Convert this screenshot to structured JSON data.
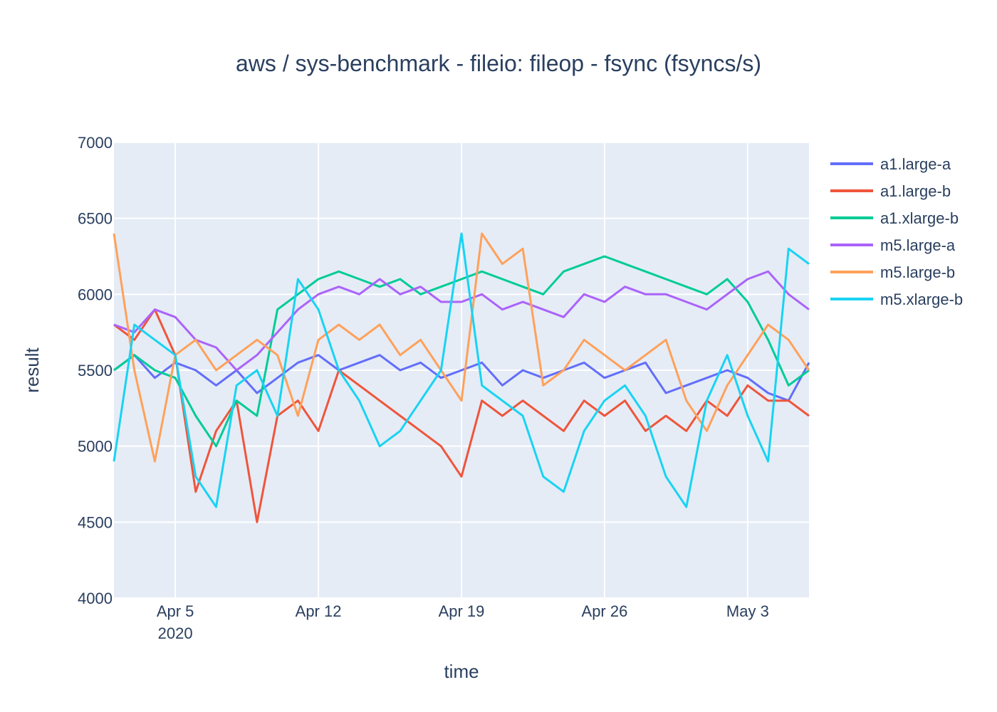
{
  "chart_data": {
    "type": "line",
    "title": "aws / sys-benchmark - fileio: fileop - fsync (fsyncs/s)",
    "xlabel": "time",
    "ylabel": "result",
    "x_range": [
      "2020-04-02",
      "2020-05-06"
    ],
    "ylim": [
      4000,
      7000
    ],
    "y_ticks": [
      4000,
      4500,
      5000,
      5500,
      6000,
      6500,
      7000
    ],
    "x_ticks": [
      {
        "date": "2020-04-05",
        "label": "Apr 5",
        "sublabel": "2020"
      },
      {
        "date": "2020-04-12",
        "label": "Apr 12",
        "sublabel": ""
      },
      {
        "date": "2020-04-19",
        "label": "Apr 19",
        "sublabel": ""
      },
      {
        "date": "2020-04-26",
        "label": "Apr 26",
        "sublabel": ""
      },
      {
        "date": "2020-05-03",
        "label": "May 3",
        "sublabel": ""
      }
    ],
    "grid": true,
    "legend_position": "right",
    "plot_bgcolor": "#e5ecf6",
    "series": [
      {
        "name": "a1.large-a",
        "color": "#636efa",
        "x": [
          "2020-04-02",
          "2020-04-03",
          "2020-04-04",
          "2020-04-05",
          "2020-04-06",
          "2020-04-07",
          "2020-04-08",
          "2020-04-09",
          "2020-04-10",
          "2020-04-11",
          "2020-04-12",
          "2020-04-13",
          "2020-04-14",
          "2020-04-15",
          "2020-04-16",
          "2020-04-17",
          "2020-04-18",
          "2020-04-19",
          "2020-04-20",
          "2020-04-21",
          "2020-04-22",
          "2020-04-23",
          "2020-04-24",
          "2020-04-25",
          "2020-04-26",
          "2020-04-27",
          "2020-04-28",
          "2020-04-29",
          "2020-04-30",
          "2020-05-01",
          "2020-05-02",
          "2020-05-03",
          "2020-05-04",
          "2020-05-05",
          "2020-05-06"
        ],
        "y": [
          5500,
          5600,
          5450,
          5550,
          5500,
          5400,
          5500,
          5350,
          5450,
          5550,
          5600,
          5500,
          5550,
          5600,
          5500,
          5550,
          5450,
          5500,
          5550,
          5400,
          5500,
          5450,
          5500,
          5550,
          5450,
          5500,
          5550,
          5350,
          5400,
          5450,
          5500,
          5450,
          5350,
          5300,
          5550
        ]
      },
      {
        "name": "a1.large-b",
        "color": "#ef553b",
        "x": [
          "2020-04-02",
          "2020-04-03",
          "2020-04-04",
          "2020-04-05",
          "2020-04-06",
          "2020-04-07",
          "2020-04-08",
          "2020-04-09",
          "2020-04-10",
          "2020-04-11",
          "2020-04-12",
          "2020-04-13",
          "2020-04-14",
          "2020-04-15",
          "2020-04-16",
          "2020-04-17",
          "2020-04-18",
          "2020-04-19",
          "2020-04-20",
          "2020-04-21",
          "2020-04-22",
          "2020-04-23",
          "2020-04-24",
          "2020-04-25",
          "2020-04-26",
          "2020-04-27",
          "2020-04-28",
          "2020-04-29",
          "2020-04-30",
          "2020-05-01",
          "2020-05-02",
          "2020-05-03",
          "2020-05-04",
          "2020-05-05",
          "2020-05-06"
        ],
        "y": [
          5800,
          5700,
          5900,
          5600,
          4700,
          5100,
          5300,
          4500,
          5200,
          5300,
          5100,
          5500,
          5400,
          5300,
          5200,
          5100,
          5000,
          4800,
          5300,
          5200,
          5300,
          5200,
          5100,
          5300,
          5200,
          5300,
          5100,
          5200,
          5100,
          5300,
          5200,
          5400,
          5300,
          5300,
          5200
        ]
      },
      {
        "name": "a1.xlarge-b",
        "color": "#00cc96",
        "x": [
          "2020-04-02",
          "2020-04-03",
          "2020-04-04",
          "2020-04-05",
          "2020-04-06",
          "2020-04-07",
          "2020-04-08",
          "2020-04-09",
          "2020-04-10",
          "2020-04-11",
          "2020-04-12",
          "2020-04-13",
          "2020-04-14",
          "2020-04-15",
          "2020-04-16",
          "2020-04-17",
          "2020-04-18",
          "2020-04-19",
          "2020-04-20",
          "2020-04-21",
          "2020-04-22",
          "2020-04-23",
          "2020-04-24",
          "2020-04-25",
          "2020-04-26",
          "2020-04-27",
          "2020-04-28",
          "2020-04-29",
          "2020-04-30",
          "2020-05-01",
          "2020-05-02",
          "2020-05-03",
          "2020-05-04",
          "2020-05-05",
          "2020-05-06"
        ],
        "y": [
          5500,
          5600,
          5500,
          5450,
          5200,
          5000,
          5300,
          5200,
          5900,
          6000,
          6100,
          6150,
          6100,
          6050,
          6100,
          6000,
          6050,
          6100,
          6150,
          6100,
          6050,
          6000,
          6150,
          6200,
          6250,
          6200,
          6150,
          6100,
          6050,
          6000,
          6100,
          5950,
          5700,
          5400,
          5500
        ]
      },
      {
        "name": "m5.large-a",
        "color": "#ab63fa",
        "x": [
          "2020-04-02",
          "2020-04-03",
          "2020-04-04",
          "2020-04-05",
          "2020-04-06",
          "2020-04-07",
          "2020-04-08",
          "2020-04-09",
          "2020-04-10",
          "2020-04-11",
          "2020-04-12",
          "2020-04-13",
          "2020-04-14",
          "2020-04-15",
          "2020-04-16",
          "2020-04-17",
          "2020-04-18",
          "2020-04-19",
          "2020-04-20",
          "2020-04-21",
          "2020-04-22",
          "2020-04-23",
          "2020-04-24",
          "2020-04-25",
          "2020-04-26",
          "2020-04-27",
          "2020-04-28",
          "2020-04-29",
          "2020-04-30",
          "2020-05-01",
          "2020-05-02",
          "2020-05-03",
          "2020-05-04",
          "2020-05-05",
          "2020-05-06"
        ],
        "y": [
          5800,
          5750,
          5900,
          5850,
          5700,
          5650,
          5500,
          5600,
          5750,
          5900,
          6000,
          6050,
          6000,
          6100,
          6000,
          6050,
          5950,
          5950,
          6000,
          5900,
          5950,
          5900,
          5850,
          6000,
          5950,
          6050,
          6000,
          6000,
          5950,
          5900,
          6000,
          6100,
          6150,
          6000,
          5900
        ]
      },
      {
        "name": "m5.large-b",
        "color": "#ffa15a",
        "x": [
          "2020-04-02",
          "2020-04-03",
          "2020-04-04",
          "2020-04-05",
          "2020-04-06",
          "2020-04-07",
          "2020-04-08",
          "2020-04-09",
          "2020-04-10",
          "2020-04-11",
          "2020-04-12",
          "2020-04-13",
          "2020-04-14",
          "2020-04-15",
          "2020-04-16",
          "2020-04-17",
          "2020-04-18",
          "2020-04-19",
          "2020-04-20",
          "2020-04-21",
          "2020-04-22",
          "2020-04-23",
          "2020-04-24",
          "2020-04-25",
          "2020-04-26",
          "2020-04-27",
          "2020-04-28",
          "2020-04-29",
          "2020-04-30",
          "2020-05-01",
          "2020-05-02",
          "2020-05-03",
          "2020-05-04",
          "2020-05-05",
          "2020-05-06"
        ],
        "y": [
          6400,
          5500,
          4900,
          5600,
          5700,
          5500,
          5600,
          5700,
          5600,
          5200,
          5700,
          5800,
          5700,
          5800,
          5600,
          5700,
          5500,
          5300,
          6400,
          6200,
          6300,
          5400,
          5500,
          5700,
          5600,
          5500,
          5600,
          5700,
          5300,
          5100,
          5400,
          5600,
          5800,
          5700,
          5500
        ]
      },
      {
        "name": "m5.xlarge-b",
        "color": "#19d3f3",
        "x": [
          "2020-04-02",
          "2020-04-03",
          "2020-04-04",
          "2020-04-05",
          "2020-04-06",
          "2020-04-07",
          "2020-04-08",
          "2020-04-09",
          "2020-04-10",
          "2020-04-11",
          "2020-04-12",
          "2020-04-13",
          "2020-04-14",
          "2020-04-15",
          "2020-04-16",
          "2020-04-17",
          "2020-04-18",
          "2020-04-19",
          "2020-04-20",
          "2020-04-21",
          "2020-04-22",
          "2020-04-23",
          "2020-04-24",
          "2020-04-25",
          "2020-04-26",
          "2020-04-27",
          "2020-04-28",
          "2020-04-29",
          "2020-04-30",
          "2020-05-01",
          "2020-05-02",
          "2020-05-03",
          "2020-05-04",
          "2020-05-05",
          "2020-05-06"
        ],
        "y": [
          4900,
          5800,
          5700,
          5600,
          4800,
          4600,
          5400,
          5500,
          5200,
          6100,
          5900,
          5500,
          5300,
          5000,
          5100,
          5300,
          5500,
          6400,
          5400,
          5300,
          5200,
          4800,
          4700,
          5100,
          5300,
          5400,
          5200,
          4800,
          4600,
          5300,
          5600,
          5200,
          4900,
          6300,
          6200
        ]
      }
    ]
  }
}
